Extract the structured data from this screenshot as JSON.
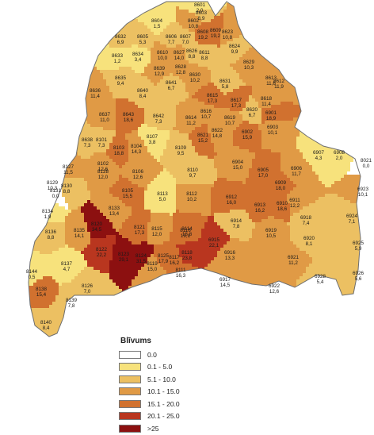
{
  "legend": {
    "title": "Blīvums",
    "classes": [
      {
        "label": "0.0",
        "color": "#ffffff"
      },
      {
        "label": "0.1 - 5.0",
        "color": "#f7e27c"
      },
      {
        "label": "5.1 - 10.0",
        "color": "#ecc062"
      },
      {
        "label": "10.1 - 15.0",
        "color": "#e09a45"
      },
      {
        "label": "15.1 - 20.0",
        "color": "#d1712f"
      },
      {
        "label": "20.1 - 25.0",
        "color": "#b9361f"
      },
      {
        "label": ">25",
        "color": "#8c1010"
      }
    ]
  },
  "regions": [
    {
      "code": "8601",
      "value": "2,0",
      "cls": 1
    },
    {
      "code": "8602",
      "value": "10,8",
      "cls": 3
    },
    {
      "code": "8603",
      "value": "8,9",
      "cls": 2
    },
    {
      "code": "8604",
      "value": "1,5",
      "cls": 1
    },
    {
      "code": "8605",
      "value": "5,3",
      "cls": 2
    },
    {
      "code": "8606",
      "value": "7,7",
      "cls": 2
    },
    {
      "code": "8607",
      "value": "7,0",
      "cls": 2
    },
    {
      "code": "8608",
      "value": "19,2",
      "cls": 4
    },
    {
      "code": "8609",
      "value": "19,2",
      "cls": 4
    },
    {
      "code": "8623",
      "value": "10,8",
      "cls": 3
    },
    {
      "code": "8624",
      "value": "9,9",
      "cls": 2
    },
    {
      "code": "8632",
      "value": "6,9",
      "cls": 2
    },
    {
      "code": "8610",
      "value": "10,0",
      "cls": 3
    },
    {
      "code": "8627",
      "value": "14,0",
      "cls": 3
    },
    {
      "code": "8626",
      "value": "8,8",
      "cls": 2
    },
    {
      "code": "8611",
      "value": "8,8",
      "cls": 2
    },
    {
      "code": "8634",
      "value": "3,4",
      "cls": 1
    },
    {
      "code": "8633",
      "value": "1,2",
      "cls": 1
    },
    {
      "code": "8639",
      "value": "12,9",
      "cls": 3
    },
    {
      "code": "8628",
      "value": "12,8",
      "cls": 3
    },
    {
      "code": "8629",
      "value": "10,3",
      "cls": 3
    },
    {
      "code": "8635",
      "value": "9,4",
      "cls": 2
    },
    {
      "code": "8630",
      "value": "10,2",
      "cls": 3
    },
    {
      "code": "8631",
      "value": "5,8",
      "cls": 2
    },
    {
      "code": "8613",
      "value": "11,6",
      "cls": 3
    },
    {
      "code": "8641",
      "value": "6,7",
      "cls": 2
    },
    {
      "code": "8612",
      "value": "11,9",
      "cls": 3
    },
    {
      "code": "8640",
      "value": "8,4",
      "cls": 2
    },
    {
      "code": "8636",
      "value": "11,4",
      "cls": 3
    },
    {
      "code": "8615",
      "value": "17,3",
      "cls": 4
    },
    {
      "code": "8617",
      "value": "17,3",
      "cls": 4
    },
    {
      "code": "8618",
      "value": "11,4",
      "cls": 3
    },
    {
      "code": "8616",
      "value": "10,7",
      "cls": 3
    },
    {
      "code": "8620",
      "value": "6,7",
      "cls": 2
    },
    {
      "code": "8637",
      "value": "11,0",
      "cls": 3
    },
    {
      "code": "8643",
      "value": "18,6",
      "cls": 4
    },
    {
      "code": "8642",
      "value": "7,3",
      "cls": 2
    },
    {
      "code": "8614",
      "value": "11,2",
      "cls": 3
    },
    {
      "code": "8619",
      "value": "10,7",
      "cls": 3
    },
    {
      "code": "6901",
      "value": "18,9",
      "cls": 4
    },
    {
      "code": "6902",
      "value": "15,9",
      "cls": 4
    },
    {
      "code": "6903",
      "value": "10,1",
      "cls": 3
    },
    {
      "code": "8622",
      "value": "14,8",
      "cls": 3
    },
    {
      "code": "8621",
      "value": "15,2",
      "cls": 4
    },
    {
      "code": "8638",
      "value": "7,3",
      "cls": 2
    },
    {
      "code": "8101",
      "value": "7,3",
      "cls": 2
    },
    {
      "code": "8107",
      "value": "3,8",
      "cls": 1
    },
    {
      "code": "8103",
      "value": "18,8",
      "cls": 4
    },
    {
      "code": "8104",
      "value": "14,3",
      "cls": 3
    },
    {
      "code": "8109",
      "value": "9,5",
      "cls": 2
    },
    {
      "code": "6907",
      "value": "4,3",
      "cls": 1
    },
    {
      "code": "6908",
      "value": "2,0",
      "cls": 1
    },
    {
      "code": "8021",
      "value": "0,0",
      "cls": 0
    },
    {
      "code": "6904",
      "value": "15,0",
      "cls": 3
    },
    {
      "code": "8128",
      "value": "12,0",
      "cls": 3
    },
    {
      "code": "8127",
      "value": "11,5",
      "cls": 3
    },
    {
      "code": "8102",
      "value": "12,6",
      "cls": 3
    },
    {
      "code": "8106",
      "value": "12,6",
      "cls": 3
    },
    {
      "code": "8110",
      "value": "9,7",
      "cls": 2
    },
    {
      "code": "6905",
      "value": "17,0",
      "cls": 4
    },
    {
      "code": "6906",
      "value": "11,7",
      "cls": 3
    },
    {
      "code": "8129",
      "value": "10,3",
      "cls": 3
    },
    {
      "code": "8130",
      "value": "8,8",
      "cls": 2
    },
    {
      "code": "8131",
      "value": "0,0",
      "cls": 0
    },
    {
      "code": "8105",
      "value": "15,5",
      "cls": 4
    },
    {
      "code": "8113",
      "value": "5,0",
      "cls": 1
    },
    {
      "code": "8112",
      "value": "10,2",
      "cls": 3
    },
    {
      "code": "6912",
      "value": "16,0",
      "cls": 4
    },
    {
      "code": "6909",
      "value": "18,0",
      "cls": 4
    },
    {
      "code": "6913",
      "value": "16,2",
      "cls": 4
    },
    {
      "code": "6910",
      "value": "18,6",
      "cls": 4
    },
    {
      "code": "6911",
      "value": "12,2",
      "cls": 3
    },
    {
      "code": "6923",
      "value": "10,1",
      "cls": 3
    },
    {
      "code": "8134",
      "value": "1,9",
      "cls": 1
    },
    {
      "code": "8133",
      "value": "13,4",
      "cls": 3
    },
    {
      "code": "6924",
      "value": "7,1",
      "cls": 2
    },
    {
      "code": "6918",
      "value": "7,4",
      "cls": 2
    },
    {
      "code": "6914",
      "value": "7,8",
      "cls": 2
    },
    {
      "code": "8136",
      "value": "8,8",
      "cls": 2
    },
    {
      "code": "8135",
      "value": "14,1",
      "cls": 3
    },
    {
      "code": "8120",
      "value": "34,5",
      "cls": 6
    },
    {
      "code": "8121",
      "value": "17,3",
      "cls": 4
    },
    {
      "code": "8115",
      "value": "12,0",
      "cls": 3
    },
    {
      "code": "8116",
      "value": "19,1",
      "cls": 4
    },
    {
      "code": "8114",
      "value": "18,8",
      "cls": 4
    },
    {
      "code": "6915",
      "value": "22,1",
      "cls": 5
    },
    {
      "code": "6919",
      "value": "10,5",
      "cls": 3
    },
    {
      "code": "6920",
      "value": "8,1",
      "cls": 2
    },
    {
      "code": "6925",
      "value": "5,9",
      "cls": 2
    },
    {
      "code": "8122",
      "value": "22,2",
      "cls": 5
    },
    {
      "code": "8123",
      "value": "29,1",
      "cls": 6
    },
    {
      "code": "8124",
      "value": "31,5",
      "cls": 6
    },
    {
      "code": "8137",
      "value": "4,7",
      "cls": 1
    },
    {
      "code": "8119",
      "value": "15,0",
      "cls": 3
    },
    {
      "code": "8125",
      "value": "17,9",
      "cls": 4
    },
    {
      "code": "8117",
      "value": "16,2",
      "cls": 4
    },
    {
      "code": "8118",
      "value": "23,8",
      "cls": 5
    },
    {
      "code": "6916",
      "value": "13,3",
      "cls": 3
    },
    {
      "code": "6921",
      "value": "11,2",
      "cls": 3
    },
    {
      "code": "6926",
      "value": "5,6",
      "cls": 2
    },
    {
      "code": "8144",
      "value": "0,5",
      "cls": 1
    },
    {
      "code": "8126",
      "value": "7,0",
      "cls": 2
    },
    {
      "code": "8111",
      "value": "16,3",
      "cls": 4
    },
    {
      "code": "6917",
      "value": "14,5",
      "cls": 3
    },
    {
      "code": "6928",
      "value": "5,4",
      "cls": 2
    },
    {
      "code": "8138",
      "value": "15,4",
      "cls": 4
    },
    {
      "code": "8139",
      "value": "7,8",
      "cls": 2
    },
    {
      "code": "6922",
      "value": "12,6",
      "cls": 3
    },
    {
      "code": "8140",
      "value": "8,4",
      "cls": 2
    }
  ]
}
